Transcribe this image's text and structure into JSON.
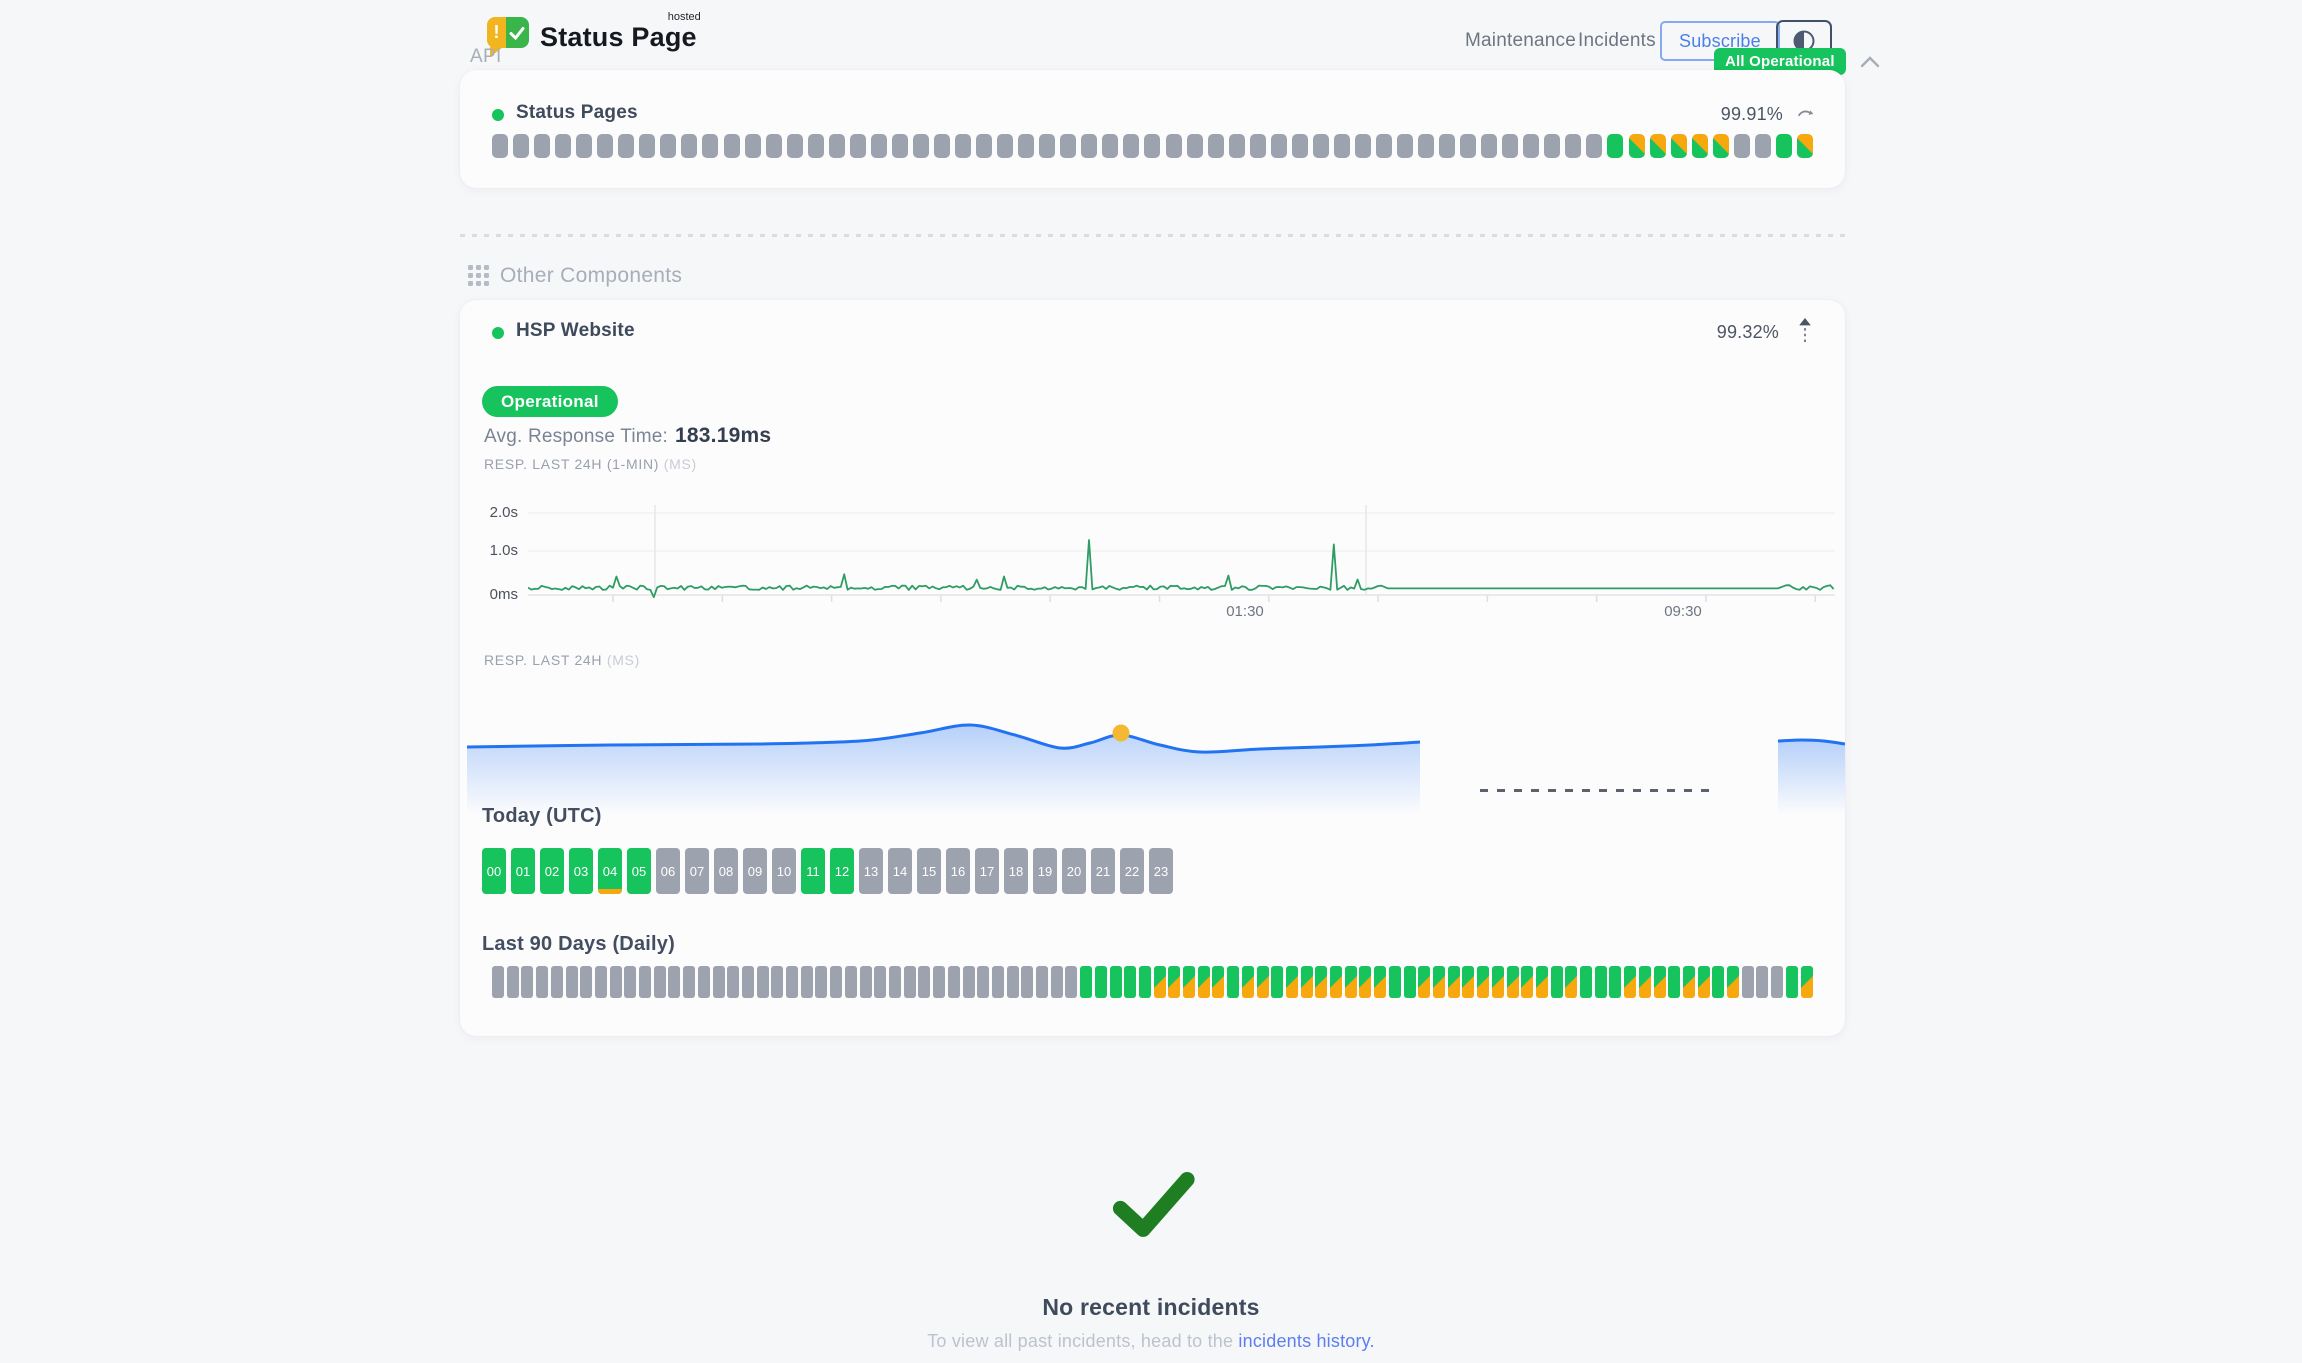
{
  "header": {
    "brand_name": "Status Page",
    "brand_tag": "hosted",
    "logo_exclaim": "!",
    "nav": [
      {
        "label": "Maintenance"
      },
      {
        "label": "Incidents"
      }
    ],
    "subscribe_label": "Subscribe",
    "overall_status": "All Operational"
  },
  "colors": {
    "green": "#16c35d",
    "orange": "#f7a80f",
    "gray_bar": "#9ca3af",
    "chart_line_green": "#2e9d63",
    "chart_line_blue": "#2273f2",
    "marker_yellow": "#f5b832",
    "check_green": "#1e7e21",
    "link_blue": "#5d7ef2"
  },
  "api_section": {
    "title": "API",
    "component": {
      "name": "Status Pages",
      "uptime": "99.91%",
      "bars": [
        "u",
        "u",
        "u",
        "u",
        "u",
        "u",
        "u",
        "u",
        "u",
        "u",
        "u",
        "u",
        "u",
        "u",
        "u",
        "u",
        "u",
        "u",
        "u",
        "u",
        "u",
        "u",
        "u",
        "u",
        "u",
        "u",
        "u",
        "u",
        "u",
        "u",
        "u",
        "u",
        "u",
        "u",
        "u",
        "u",
        "u",
        "u",
        "u",
        "u",
        "u",
        "u",
        "u",
        "u",
        "u",
        "u",
        "u",
        "u",
        "u",
        "u",
        "u",
        "u",
        "u",
        "g",
        "p",
        "p",
        "p",
        "p",
        "p",
        "u",
        "u",
        "g",
        "p"
      ]
    }
  },
  "other_section": {
    "title": "Other Components",
    "component": {
      "name": "HSP Website",
      "uptime": "99.32%",
      "status_label": "Operational",
      "avg_response_label": "Avg. Response Time:",
      "avg_response_value": "183.19ms",
      "minute_chart": {
        "label": "RESP. LAST 24H (1-MIN)",
        "unit": "(MS)",
        "y_ticks": [
          "2.0s",
          "1.0s",
          "0ms"
        ],
        "x_ticks": [
          "01:30",
          "09:30"
        ],
        "baseline_ms": 150,
        "big_spikes_ms": [
          1250,
          1150
        ]
      },
      "daily_chart": {
        "label": "RESP. LAST 24H",
        "unit": "(MS)"
      },
      "today": {
        "title": "Today (UTC)",
        "labels": [
          "00",
          "01",
          "02",
          "03",
          "04",
          "05",
          "06",
          "07",
          "08",
          "09",
          "10",
          "11",
          "12",
          "13",
          "14",
          "15",
          "16",
          "17",
          "18",
          "19",
          "20",
          "21",
          "22",
          "23"
        ],
        "states": [
          "g",
          "g",
          "g",
          "g",
          "g",
          "g",
          "u",
          "u",
          "u",
          "u",
          "u",
          "g",
          "g",
          "u",
          "u",
          "u",
          "u",
          "u",
          "u",
          "u",
          "u",
          "u",
          "u",
          "u"
        ],
        "marker_hour": 4
      },
      "last90": {
        "title": "Last 90 Days (Daily)",
        "bars": [
          "u",
          "u",
          "u",
          "u",
          "u",
          "u",
          "u",
          "u",
          "u",
          "u",
          "u",
          "u",
          "u",
          "u",
          "u",
          "u",
          "u",
          "u",
          "u",
          "u",
          "u",
          "u",
          "u",
          "u",
          "u",
          "u",
          "u",
          "u",
          "u",
          "u",
          "u",
          "u",
          "u",
          "u",
          "u",
          "u",
          "u",
          "u",
          "u",
          "u",
          "g",
          "g",
          "g",
          "g",
          "g",
          "p",
          "p",
          "p",
          "p",
          "p",
          "g",
          "p",
          "p",
          "g",
          "p",
          "p",
          "p",
          "p",
          "p",
          "p",
          "p",
          "g",
          "g",
          "p",
          "p",
          "p",
          "p",
          "p",
          "p",
          "p",
          "p",
          "p",
          "g",
          "p",
          "g",
          "g",
          "g",
          "p",
          "p",
          "p",
          "g",
          "p",
          "p",
          "g",
          "p",
          "u",
          "u",
          "u",
          "g",
          "p"
        ]
      }
    }
  },
  "footer": {
    "title": "No recent incidents",
    "subtitle": "To view all past incidents, head to the ",
    "link_label": "incidents history."
  }
}
